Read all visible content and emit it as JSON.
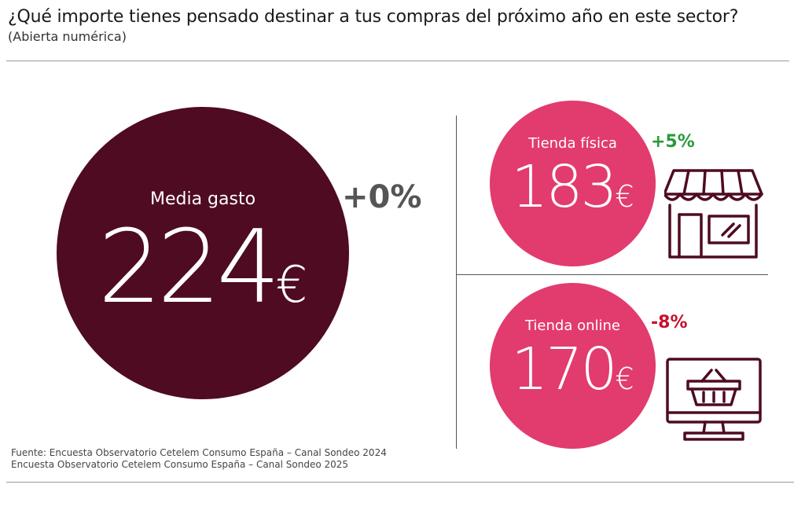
{
  "header": {
    "question": "¿Qué importe tienes pensado destinar a tus compras del próximo año en este sector?",
    "subtitle": "(Abierta numérica)"
  },
  "colors": {
    "dark_circle": "#4e0b22",
    "pink_circle": "#e23b6e",
    "positive": "#2a9a3a",
    "negative": "#c8102e",
    "neutral": "#555555",
    "icon_stroke": "#4e0b22"
  },
  "chart_data": {
    "type": "bubble-summary",
    "items": [
      {
        "label": "Media gasto",
        "value": 224,
        "unit": "€",
        "change": "+0%"
      },
      {
        "label": "Tienda física",
        "value": 183,
        "unit": "€",
        "change": "+5%",
        "icon": "store-icon"
      },
      {
        "label": "Tienda online",
        "value": 170,
        "unit": "€",
        "change": "-8%",
        "icon": "monitor-basket-icon"
      }
    ]
  },
  "footer": {
    "source_line1": "Fuente: Encuesta Observatorio Cetelem Consumo España – Canal Sondeo 2024",
    "source_line2": "Encuesta Observatorio Cetelem Consumo España – Canal Sondeo 2025"
  }
}
